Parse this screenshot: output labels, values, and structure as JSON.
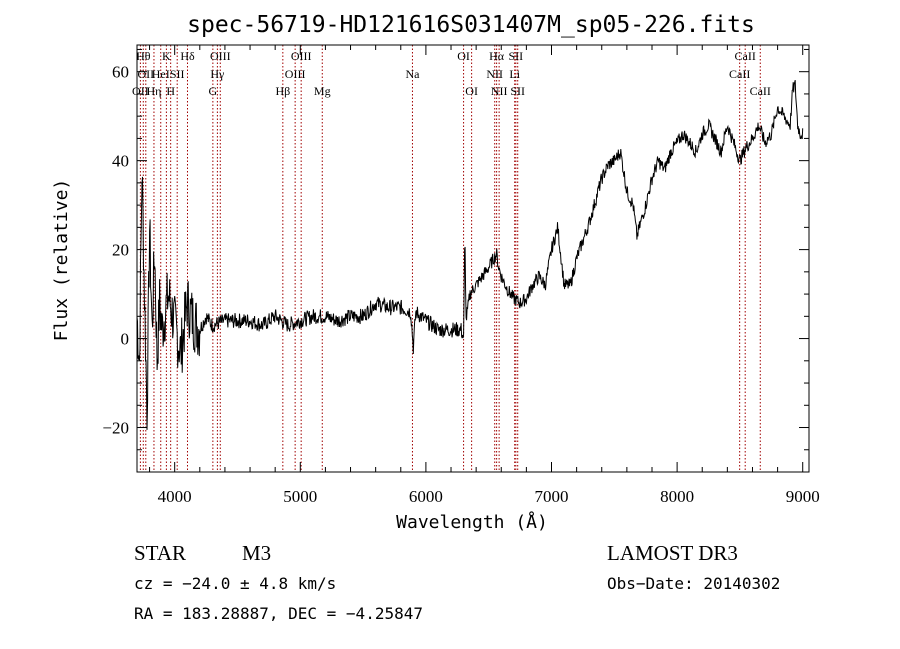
{
  "chart_data": {
    "type": "line",
    "title": "spec-56719-HD121616S031407M_sp05-226.fits",
    "xlabel": "Wavelength (Å)",
    "ylabel": "Flux (relative)",
    "xlim": [
      3700,
      9050
    ],
    "ylim": [
      -30,
      66
    ],
    "x_ticks": [
      4000,
      5000,
      6000,
      7000,
      8000,
      9000
    ],
    "y_ticks": [
      -20,
      0,
      20,
      40,
      60
    ],
    "grid": false,
    "line_color": "#000000",
    "marker_color": "#a00000",
    "series": [
      {
        "name": "flux",
        "x": [
          3700,
          3720,
          3740,
          3760,
          3780,
          3800,
          3820,
          3840,
          3860,
          3880,
          3900,
          3950,
          4000,
          4050,
          4100,
          4150,
          4200,
          4250,
          4300,
          4400,
          4500,
          4600,
          4700,
          4800,
          4900,
          5000,
          5100,
          5200,
          5300,
          5400,
          5500,
          5600,
          5700,
          5800,
          5880,
          5900,
          5920,
          6000,
          6100,
          6200,
          6280,
          6300,
          6310,
          6320,
          6350,
          6400,
          6450,
          6500,
          6540,
          6563,
          6580,
          6600,
          6650,
          6700,
          6750,
          6800,
          6850,
          6900,
          6950,
          7000,
          7050,
          7100,
          7150,
          7200,
          7250,
          7300,
          7350,
          7400,
          7450,
          7500,
          7550,
          7600,
          7650,
          7680,
          7700,
          7750,
          7800,
          7850,
          7900,
          7950,
          8000,
          8050,
          8100,
          8150,
          8200,
          8250,
          8300,
          8350,
          8400,
          8450,
          8500,
          8550,
          8600,
          8650,
          8700,
          8750,
          8800,
          8850,
          8900,
          8920,
          8940,
          8960,
          8980,
          9000
        ],
        "y": [
          5,
          -5,
          38,
          10,
          -16,
          25,
          2,
          20,
          -5,
          8,
          2,
          10,
          3,
          -3,
          8,
          4,
          2,
          5,
          3,
          4,
          4,
          4,
          3,
          5,
          3,
          4,
          5,
          5,
          4,
          5,
          5,
          8,
          7,
          7,
          6,
          -2,
          6,
          4,
          2,
          2,
          2,
          0,
          24,
          4,
          10,
          12,
          14,
          16,
          18,
          19,
          16,
          14,
          11,
          9,
          8,
          9,
          12,
          14,
          12,
          20,
          25,
          12,
          12,
          18,
          22,
          26,
          31,
          36,
          39,
          40,
          42,
          33,
          30,
          23,
          25,
          30,
          36,
          40,
          38,
          42,
          44,
          46,
          44,
          42,
          46,
          48,
          45,
          42,
          48,
          44,
          40,
          43,
          45,
          48,
          44,
          46,
          52,
          50,
          48,
          56,
          57,
          48,
          46,
          46
        ]
      }
    ],
    "line_markers": [
      {
        "wavelength": 3727,
        "label": "OII",
        "row": 3
      },
      {
        "wavelength": 3750,
        "label": "Hθ",
        "row": 1
      },
      {
        "wavelength": 3770,
        "label": "OII",
        "row": 2
      },
      {
        "wavelength": 3835,
        "label": "Hη",
        "row": 3
      },
      {
        "wavelength": 3889,
        "label": "HeI",
        "row": 2
      },
      {
        "wavelength": 3934,
        "label": "K",
        "row": 1
      },
      {
        "wavelength": 3968,
        "label": "H",
        "row": 3
      },
      {
        "wavelength": 4020,
        "label": "SII",
        "row": 2
      },
      {
        "wavelength": 4102,
        "label": "Hδ",
        "row": 1
      },
      {
        "wavelength": 4304,
        "label": "G",
        "row": 3
      },
      {
        "wavelength": 4340,
        "label": "Hγ",
        "row": 2
      },
      {
        "wavelength": 4363,
        "label": "OIII",
        "row": 1
      },
      {
        "wavelength": 4861,
        "label": "Hβ",
        "row": 3
      },
      {
        "wavelength": 4959,
        "label": "OIII",
        "row": 2
      },
      {
        "wavelength": 5007,
        "label": "OIII",
        "row": 1
      },
      {
        "wavelength": 5175,
        "label": "Mg",
        "row": 3
      },
      {
        "wavelength": 5893,
        "label": "Na",
        "row": 2
      },
      {
        "wavelength": 6300,
        "label": "OI",
        "row": 1
      },
      {
        "wavelength": 6364,
        "label": "OI",
        "row": 3
      },
      {
        "wavelength": 6548,
        "label": "NII",
        "row": 2
      },
      {
        "wavelength": 6563,
        "label": "Hα",
        "row": 1
      },
      {
        "wavelength": 6583,
        "label": "NII",
        "row": 3
      },
      {
        "wavelength": 6707,
        "label": "Li",
        "row": 2
      },
      {
        "wavelength": 6716,
        "label": "SII",
        "row": 1
      },
      {
        "wavelength": 6731,
        "label": "SII",
        "row": 3
      },
      {
        "wavelength": 8498,
        "label": "CaII",
        "row": 2
      },
      {
        "wavelength": 8542,
        "label": "CaII",
        "row": 1
      },
      {
        "wavelength": 8662,
        "label": "CaII",
        "row": 3
      }
    ]
  },
  "info": {
    "object_class": "STAR",
    "subclass": "M3",
    "survey": "LAMOST DR3",
    "cz": "cz = −24.0 ± 4.8 km/s",
    "obs_date": "Obs−Date: 20140302",
    "coords": "RA = 183.28887, DEC =  −4.25847"
  }
}
